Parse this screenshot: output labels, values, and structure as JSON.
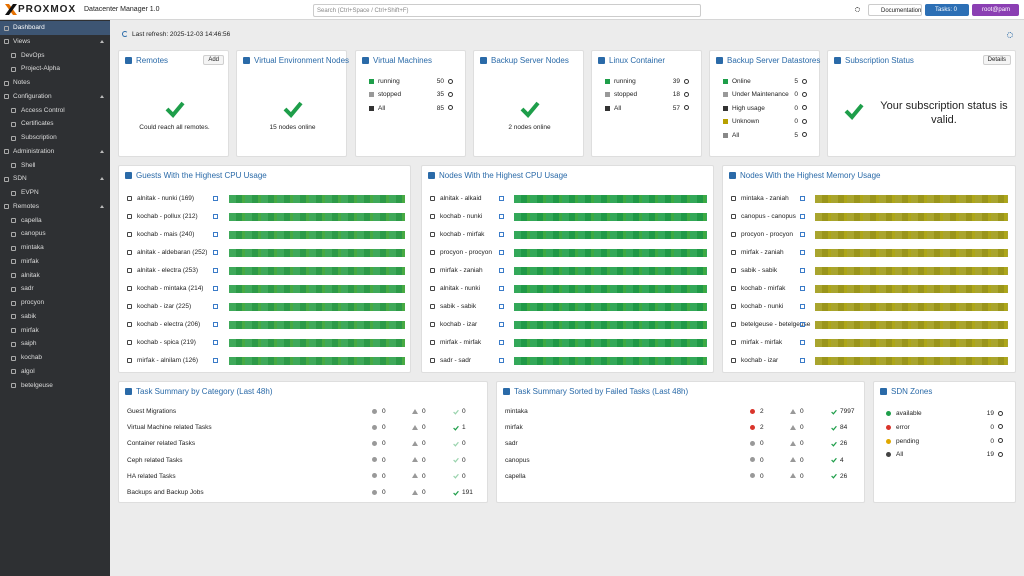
{
  "header": {
    "logo": "PROXMOX",
    "product": "Datacenter Manager 1.0",
    "search_placeholder": "Search (Ctrl+Space / Ctrl+Shift+F)",
    "documentation": "Documentation",
    "tasks": "Tasks: 0",
    "user": "root@pam"
  },
  "sidebar": [
    {
      "label": "Dashboard"
    },
    {
      "label": "Views",
      "children": [
        {
          "label": "DevOps"
        },
        {
          "label": "Project-Alpha"
        }
      ]
    },
    {
      "label": "Notes"
    },
    {
      "label": "Configuration",
      "children": [
        {
          "label": "Access Control"
        },
        {
          "label": "Certificates"
        },
        {
          "label": "Subscription"
        }
      ]
    },
    {
      "label": "Administration",
      "children": [
        {
          "label": "Shell"
        }
      ]
    },
    {
      "label": "SDN",
      "children": [
        {
          "label": "EVPN"
        }
      ]
    },
    {
      "label": "Remotes",
      "children": [
        {
          "label": "capella"
        },
        {
          "label": "canopus"
        },
        {
          "label": "mintaka"
        },
        {
          "label": "mirfak"
        },
        {
          "label": "alnitak"
        },
        {
          "label": "sadr"
        },
        {
          "label": "procyon"
        },
        {
          "label": "sabik"
        },
        {
          "label": "mirfak"
        },
        {
          "label": "saiph"
        },
        {
          "label": "kochab"
        },
        {
          "label": "algol"
        },
        {
          "label": "betelgeuse"
        }
      ]
    }
  ],
  "toolbar": {
    "last_refresh": "Last refresh: 2025-12-03 14:46:56"
  },
  "cards": [
    {
      "title": "Remotes",
      "button": "Add",
      "message": "Could reach all remotes."
    },
    {
      "title": "Virtual Environment Nodes",
      "message": "15 nodes online"
    },
    {
      "title": "Virtual Machines",
      "rows": [
        {
          "label": "running",
          "count": 50
        },
        {
          "label": "stopped",
          "count": 35
        },
        {
          "label": "All",
          "count": 85
        }
      ]
    },
    {
      "title": "Backup Server Nodes",
      "message": "2 nodes online"
    },
    {
      "title": "Linux Container",
      "rows": [
        {
          "label": "running",
          "count": 39
        },
        {
          "label": "stopped",
          "count": 18
        },
        {
          "label": "All",
          "count": 57
        }
      ]
    },
    {
      "title": "Backup Server Datastores",
      "rows": [
        {
          "label": "Online",
          "count": 5
        },
        {
          "label": "Under Maintenance",
          "count": 0
        },
        {
          "label": "High usage",
          "count": 0
        },
        {
          "label": "Unknown",
          "count": 0
        },
        {
          "label": "All",
          "count": 5
        }
      ]
    },
    {
      "title": "Subscription Status",
      "button": "Details",
      "message": "Your subscription status is valid."
    }
  ],
  "panels": [
    {
      "title": "Guests With the Highest CPU Usage",
      "bar_color": "#2fa24c",
      "rows": [
        "alnitak - nunki (169)",
        "kochab - pollux (212)",
        "kochab - mais (240)",
        "alnitak - aldebaran (252)",
        "alnitak - electra (253)",
        "kochab - mintaka (214)",
        "kochab - izar (225)",
        "kochab - electra (206)",
        "kochab - spica (219)",
        "mirfak - alnilam (126)"
      ]
    },
    {
      "title": "Nodes With the Highest CPU Usage",
      "bar_color": "#22a14b",
      "rows": [
        "alnitak - alkaid",
        "kochab - nunki",
        "kochab - mirfak",
        "procyon - procyon",
        "mirfak - zaniah",
        "alnitak - nunki",
        "sabik - sabik",
        "kochab - izar",
        "mirfak - mirfak",
        "sadr - sadr"
      ]
    },
    {
      "title": "Nodes With the Highest Memory Usage",
      "bar_color": "#a29d1c",
      "rows": [
        "mintaka - zaniah",
        "canopus - canopus",
        "procyon - procyon",
        "mirfak - zaniah",
        "sabik - sabik",
        "kochab - mirfak",
        "kochab - nunki",
        "betelgeuse - betelgeuse",
        "mirfak - mirfak",
        "kochab - izar"
      ]
    }
  ],
  "tasks": [
    {
      "title": "Task Summary by Category (Last 48h)",
      "rows": [
        {
          "name": "Guest Migrations",
          "error": 0,
          "warning": 0,
          "ok": 0
        },
        {
          "name": "Virtual Machine related Tasks",
          "error": 0,
          "warning": 0,
          "ok": 1
        },
        {
          "name": "Container related Tasks",
          "error": 0,
          "warning": 0,
          "ok": 0
        },
        {
          "name": "Ceph related Tasks",
          "error": 0,
          "warning": 0,
          "ok": 0
        },
        {
          "name": "HA related Tasks",
          "error": 0,
          "warning": 0,
          "ok": 0
        },
        {
          "name": "Backups and Backup Jobs",
          "error": 0,
          "warning": 0,
          "ok": 191
        }
      ]
    },
    {
      "title": "Task Summary Sorted by Failed Tasks (Last 48h)",
      "rows": [
        {
          "name": "mintaka",
          "error": 2,
          "warning": 0,
          "ok": 7997
        },
        {
          "name": "mirfak",
          "error": 2,
          "warning": 0,
          "ok": 84
        },
        {
          "name": "sadr",
          "error": 0,
          "warning": 0,
          "ok": 26
        },
        {
          "name": "canopus",
          "error": 0,
          "warning": 0,
          "ok": 4
        },
        {
          "name": "capella",
          "error": 0,
          "warning": 0,
          "ok": 26
        }
      ]
    }
  ],
  "sdn": {
    "title": "SDN Zones",
    "rows": [
      {
        "label": "available",
        "count": 19
      },
      {
        "label": "error",
        "count": 0
      },
      {
        "label": "pending",
        "count": 0
      },
      {
        "label": "All",
        "count": 19
      }
    ]
  }
}
